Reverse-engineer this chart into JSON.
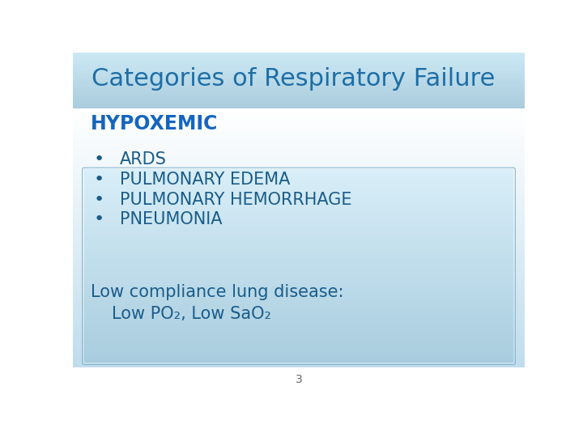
{
  "title": "Categories of Respiratory Failure",
  "title_color": "#1E6EA6",
  "title_fontsize": 22,
  "hypoxemic_label": "HYPOXEMIC",
  "hypoxemic_color": "#1565C0",
  "hypoxemic_fontsize": 17,
  "bullet_items": [
    "ARDS",
    "PULMONARY EDEMA",
    "PULMONARY HEMORRHAGE",
    "PNEUMONIA"
  ],
  "bullet_color": "#1A5C8A",
  "bullet_fontsize": 15,
  "footer_line1": "Low compliance lung disease:",
  "footer_line2": "Low PO₂, Low SaO₂",
  "footer_color": "#1A5C8A",
  "footer_fontsize": 15,
  "page_number": "3",
  "page_number_color": "#666666",
  "page_number_fontsize": 10,
  "title_bar_color_top": "#AACCDD",
  "title_bar_color_bottom": "#C8E4F0",
  "slide_bg": "#FFFFFF",
  "content_box_color_top": "#E0F0F8",
  "content_box_color_bottom": "#B0D4E4"
}
